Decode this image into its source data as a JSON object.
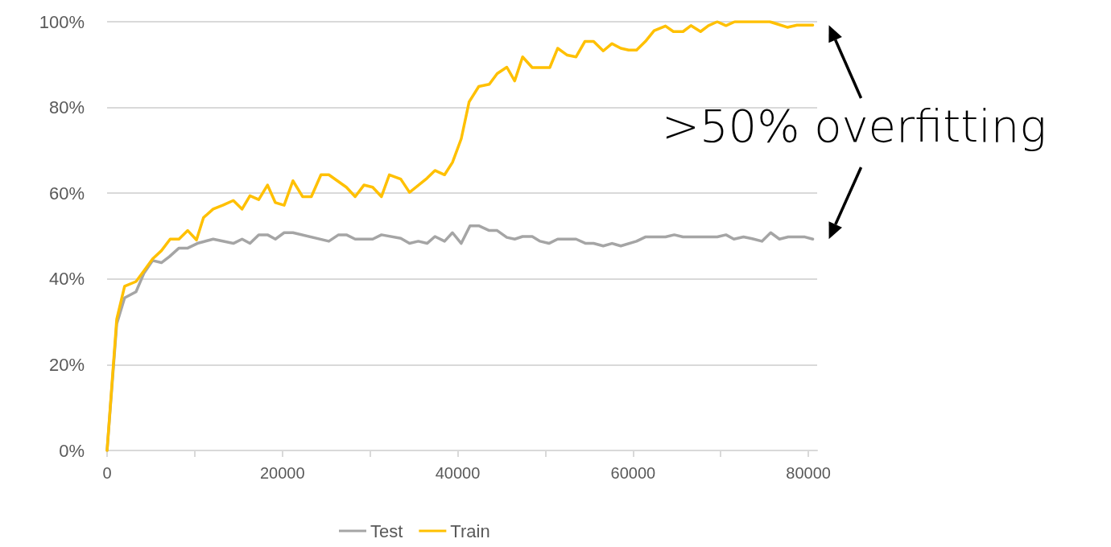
{
  "chart_data": {
    "type": "line",
    "xlim": [
      0,
      81000
    ],
    "xticks": [
      0,
      {
        "value": 10000,
        "label": null
      },
      20000,
      {
        "value": 30000,
        "label": null
      },
      40000,
      {
        "value": 50000,
        "label": null
      },
      60000,
      {
        "value": 70000,
        "label": null
      },
      80000
    ],
    "ylim": [
      0,
      100
    ],
    "yticks": [
      {
        "value": 0,
        "label": "0%"
      },
      {
        "value": 20,
        "label": "20%"
      },
      {
        "value": 40,
        "label": "40%"
      },
      {
        "value": 60,
        "label": "60%"
      },
      {
        "value": 80,
        "label": "80%"
      },
      {
        "value": 100,
        "label": "100%"
      }
    ],
    "grid": "y",
    "legend": "bottom",
    "marker": "none",
    "line_style": "solid",
    "annotations": [
      ">50% overfitting"
    ],
    "series": [
      {
        "name": "Test",
        "color": "#a5a5a5",
        "x": [
          0,
          1100,
          2000,
          3300,
          4200,
          5200,
          6200,
          7100,
          8200,
          9200,
          10300,
          12100,
          14400,
          15400,
          16300,
          17300,
          18300,
          19200,
          20200,
          21200,
          25300,
          26400,
          27300,
          28300,
          30300,
          31300,
          33500,
          34500,
          35500,
          36500,
          37400,
          38500,
          39400,
          40400,
          41400,
          42400,
          43600,
          44500,
          45600,
          46500,
          47400,
          48500,
          49400,
          50400,
          51400,
          53500,
          54600,
          55500,
          56600,
          57600,
          58600,
          60400,
          61400,
          63700,
          64700,
          65700,
          69600,
          70600,
          71500,
          72600,
          73600,
          74700,
          75700,
          76700,
          77700,
          79600,
          80500
        ],
        "values": [
          0,
          29.5,
          35.6,
          37.0,
          41.3,
          44.3,
          43.8,
          45.2,
          47.2,
          47.2,
          48.3,
          49.3,
          48.3,
          49.3,
          48.3,
          50.3,
          50.3,
          49.3,
          50.8,
          50.8,
          48.8,
          50.3,
          50.3,
          49.3,
          49.3,
          50.3,
          49.5,
          48.3,
          48.8,
          48.3,
          49.9,
          48.8,
          50.8,
          48.3,
          52.4,
          52.4,
          51.3,
          51.3,
          49.7,
          49.3,
          49.9,
          49.9,
          48.8,
          48.3,
          49.3,
          49.3,
          48.3,
          48.3,
          47.7,
          48.3,
          47.7,
          48.8,
          49.8,
          49.8,
          50.3,
          49.8,
          49.8,
          50.3,
          49.3,
          49.8,
          49.4,
          48.8,
          50.8,
          49.3,
          49.8,
          49.8,
          49.3
        ]
      },
      {
        "name": "Train",
        "color": "#ffc000",
        "x": [
          0,
          1100,
          2000,
          3300,
          4200,
          5200,
          6200,
          7200,
          8200,
          9200,
          10200,
          11000,
          12100,
          13200,
          14400,
          15400,
          16300,
          17300,
          18300,
          19200,
          20200,
          21200,
          22300,
          23300,
          24400,
          25300,
          27300,
          28300,
          29300,
          30300,
          31300,
          32200,
          33500,
          34500,
          36500,
          37400,
          38500,
          39400,
          40400,
          41300,
          42400,
          43600,
          44500,
          45600,
          46500,
          47400,
          48500,
          50500,
          51400,
          52500,
          53500,
          54500,
          55500,
          56600,
          57600,
          58600,
          59500,
          60400,
          61400,
          62400,
          63700,
          64600,
          65700,
          66600,
          67700,
          68600,
          69600,
          70600,
          71600,
          75600,
          76700,
          77600,
          78700,
          80500
        ],
        "values": [
          0,
          30.6,
          38.3,
          39.4,
          41.9,
          44.7,
          46.6,
          49.3,
          49.3,
          51.3,
          49.1,
          54.3,
          56.3,
          57.2,
          58.3,
          56.3,
          59.4,
          58.5,
          61.9,
          57.8,
          57.2,
          62.9,
          59.2,
          59.2,
          64.3,
          64.3,
          61.4,
          59.2,
          61.9,
          61.4,
          59.2,
          64.3,
          63.3,
          60.2,
          63.5,
          65.3,
          64.3,
          67.2,
          72.7,
          81.3,
          84.9,
          85.4,
          87.9,
          89.4,
          86.2,
          91.8,
          89.3,
          89.3,
          93.8,
          92.2,
          91.8,
          95.4,
          95.4,
          93.2,
          94.9,
          93.8,
          93.4,
          93.4,
          95.4,
          97.9,
          99.0,
          97.7,
          97.7,
          99.1,
          97.7,
          99.1,
          100,
          99.1,
          100,
          100,
          99.3,
          98.7,
          99.2,
          99.2
        ]
      }
    ]
  }
}
